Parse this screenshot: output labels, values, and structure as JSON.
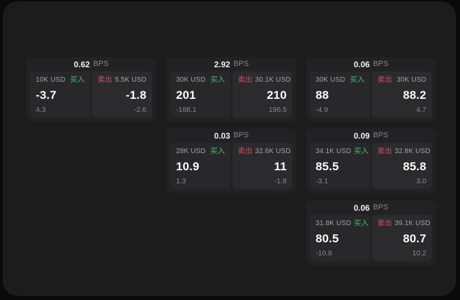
{
  "app": {
    "background_color": "#0a0a0a",
    "panel_color": "#1c1c1d",
    "card_color": "#222224"
  },
  "labels": {
    "bps_unit": "BPS",
    "buy": "买入",
    "sell": "卖出"
  },
  "colors": {
    "buy_accent": "#46be6e",
    "sell_accent": "#cf4f5e",
    "price_text": "#fbfbfc",
    "muted_text": "#88888c"
  },
  "cards": [
    {
      "bps": "0.62",
      "buy": {
        "amount": "10K USD",
        "price": "-3.7",
        "delta": "4.3"
      },
      "sell": {
        "amount": "5.5K USD",
        "price": "-1.8",
        "delta": "-2.6"
      }
    },
    {
      "bps": "2.92",
      "buy": {
        "amount": "30K USD",
        "price": "201",
        "delta": "-188.1"
      },
      "sell": {
        "amount": "30.1K USD",
        "price": "210",
        "delta": "196.5"
      }
    },
    {
      "bps": "0.06",
      "buy": {
        "amount": "30K USD",
        "price": "88",
        "delta": "-4.9"
      },
      "sell": {
        "amount": "30K USD",
        "price": "88.2",
        "delta": "4.7"
      }
    },
    {
      "bps": "0.03",
      "buy": {
        "amount": "28K USD",
        "price": "10.9",
        "delta": "1.3"
      },
      "sell": {
        "amount": "32.6K USD",
        "price": "11",
        "delta": "-1.8"
      }
    },
    {
      "bps": "0.09",
      "buy": {
        "amount": "34.1K USD",
        "price": "85.5",
        "delta": "-3.1"
      },
      "sell": {
        "amount": "32.8K USD",
        "price": "85.8",
        "delta": "3.0"
      }
    },
    {
      "bps": "0.06",
      "buy": {
        "amount": "31.8K USD",
        "price": "80.5",
        "delta": "-10.8"
      },
      "sell": {
        "amount": "39.1K USD",
        "price": "80.7",
        "delta": "10.2"
      }
    }
  ]
}
